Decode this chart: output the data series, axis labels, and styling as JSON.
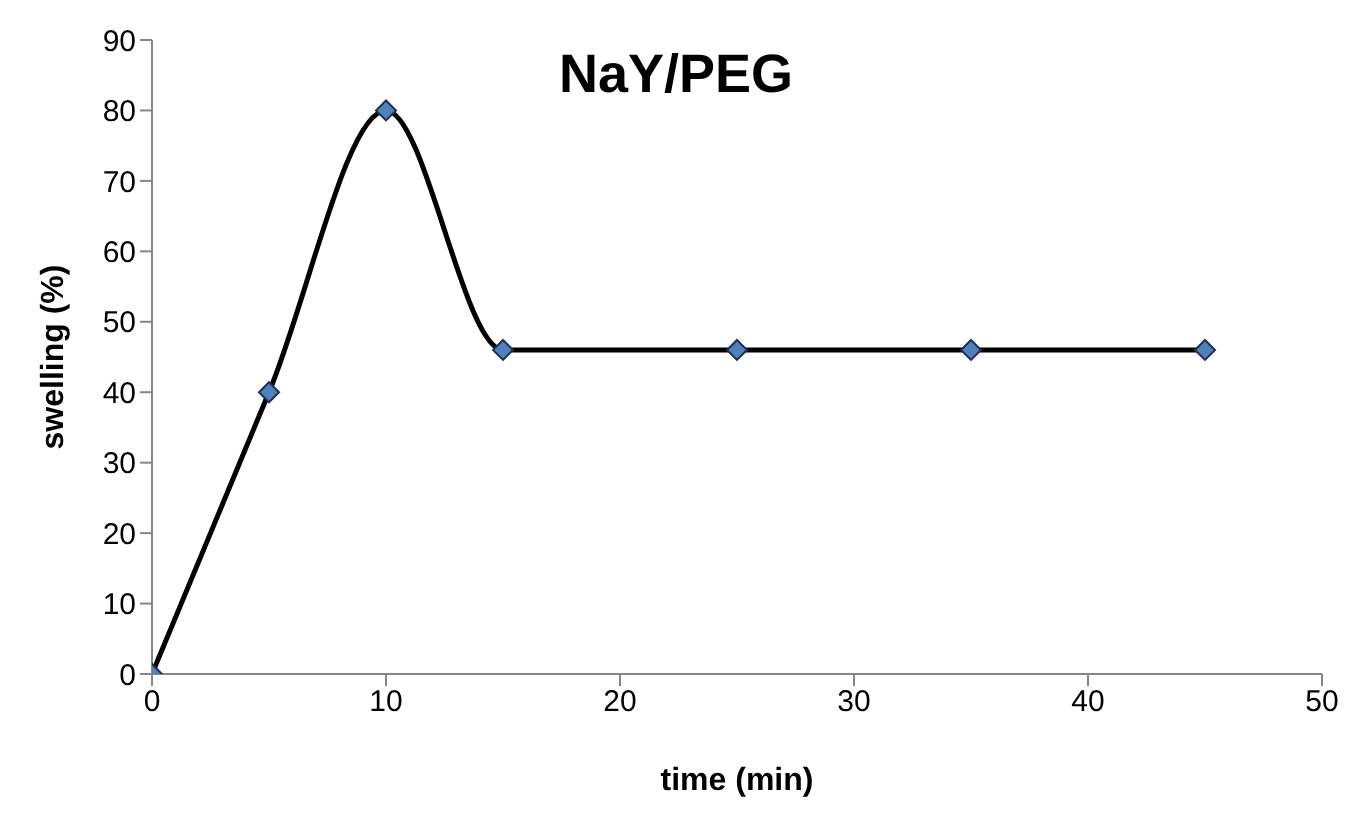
{
  "chart_data": {
    "type": "line",
    "title": "NaY/PEG",
    "xlabel": "time (min)",
    "ylabel": "swelling (%)",
    "x": [
      0,
      5,
      10,
      15,
      25,
      35,
      45
    ],
    "series": [
      {
        "color": "#000000",
        "values": [
          0,
          40,
          80,
          46,
          46,
          46,
          46
        ]
      }
    ],
    "xlim": [
      0,
      50
    ],
    "xticks": [
      0,
      10,
      20,
      30,
      40,
      50
    ],
    "ylim": [
      0,
      90
    ],
    "yticks": [
      0,
      10,
      20,
      30,
      40,
      50,
      60,
      70,
      80,
      90
    ],
    "grid": false,
    "legend": false,
    "marker": "diamond",
    "line_style": "solid"
  }
}
